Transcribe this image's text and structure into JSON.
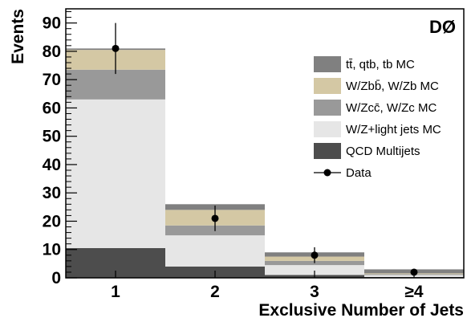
{
  "chart_data": {
    "type": "bar",
    "stacked": true,
    "experiment_label": "DØ",
    "xlabel": "Exclusive Number of Jets",
    "ylabel": "Events",
    "categories": [
      "1",
      "2",
      "3",
      "≥4"
    ],
    "ylim": [
      0,
      95
    ],
    "yticks": [
      0,
      10,
      20,
      30,
      40,
      50,
      60,
      70,
      80,
      90
    ],
    "series": [
      {
        "name": "QCD Multijets",
        "color": "#4d4d4d",
        "values": [
          10.5,
          4,
          1,
          0.3
        ]
      },
      {
        "name": "W/Z+light jets MC",
        "color": "#e6e6e6",
        "values": [
          52.5,
          11,
          3.5,
          0.7
        ]
      },
      {
        "name": "W/Zcc̄, W/Zc MC",
        "color": "#999999",
        "values": [
          10.5,
          3.5,
          1.5,
          0.3
        ]
      },
      {
        "name": "W/Zbb̄, W/Zb MC",
        "color": "#d4c8a4",
        "values": [
          7,
          5.5,
          1.5,
          0.3
        ]
      },
      {
        "name": "tt̄, qtb, tb MC",
        "color": "#808080",
        "values": [
          0.5,
          2,
          1.5,
          1.4
        ]
      }
    ],
    "data_series": {
      "name": "Data",
      "values": [
        81,
        21,
        8,
        2
      ],
      "errors": [
        9,
        4.5,
        2.8,
        0.4
      ]
    },
    "legend_position": "right",
    "legend_order": [
      "tt̄, qtb, tb MC",
      "W/Zbb̄, W/Zb MC",
      "W/Zcc̄, W/Zc MC",
      "W/Z+light jets MC",
      "QCD Multijets",
      "Data"
    ]
  }
}
